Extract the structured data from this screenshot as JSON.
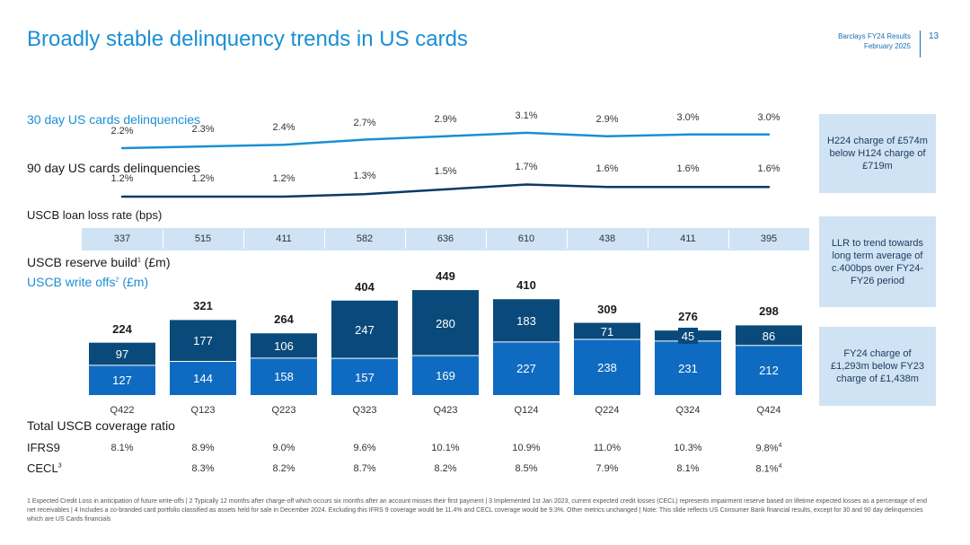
{
  "title": "Broadly stable delinquency trends in US cards",
  "header": {
    "line1": "Barclays FY24 Results",
    "line2": "February 2025",
    "page": "13"
  },
  "sections": {
    "dq30": "30 day US cards delinquencies",
    "dq90": "90 day US cards delinquencies",
    "llr": "USCB loan loss rate (bps)",
    "reserve": "USCB reserve build",
    "reserve_sup": "1",
    "reserve_unit": " (£m)",
    "writeoff": "USCB write offs",
    "writeoff_sup": "2",
    "writeoff_unit": " (£m)",
    "coverage": "Total USCB coverage ratio",
    "ifrs9": "IFRS9",
    "cecl": "CECL",
    "cecl_sup": "3"
  },
  "chart_data": {
    "type": "bar",
    "categories": [
      "Q422",
      "Q123",
      "Q223",
      "Q323",
      "Q423",
      "Q124",
      "Q224",
      "Q324",
      "Q424"
    ],
    "series": [
      {
        "name": "USCB write offs (£m)",
        "values": [
          127,
          144,
          158,
          157,
          169,
          227,
          238,
          231,
          212
        ],
        "color": "#0f6bc1"
      },
      {
        "name": "USCB reserve build (£m)",
        "values": [
          97,
          177,
          106,
          247,
          280,
          183,
          71,
          45,
          86
        ],
        "color": "#0a4a7a"
      }
    ],
    "totals": [
      224,
      321,
      264,
      404,
      449,
      410,
      309,
      276,
      298
    ],
    "lines": {
      "dq30": {
        "label": "30 day US cards delinquencies",
        "values": [
          "2.2%",
          "2.3%",
          "2.4%",
          "2.7%",
          "2.9%",
          "3.1%",
          "2.9%",
          "3.0%",
          "3.0%"
        ],
        "numeric": [
          2.2,
          2.3,
          2.4,
          2.7,
          2.9,
          3.1,
          2.9,
          3.0,
          3.0
        ],
        "color": "#1b8fd2"
      },
      "dq90": {
        "label": "90 day US cards delinquencies",
        "values": [
          "1.2%",
          "1.2%",
          "1.2%",
          "1.3%",
          "1.5%",
          "1.7%",
          "1.6%",
          "1.6%",
          "1.6%"
        ],
        "numeric": [
          1.2,
          1.2,
          1.2,
          1.3,
          1.5,
          1.7,
          1.6,
          1.6,
          1.6
        ],
        "color": "#0a3a66"
      }
    },
    "llr_bps": [
      "337",
      "515",
      "411",
      "582",
      "636",
      "610",
      "438",
      "411",
      "395"
    ],
    "ifrs9": [
      "8.1%",
      "8.9%",
      "9.0%",
      "9.6%",
      "10.1%",
      "10.9%",
      "11.0%",
      "10.3%",
      "9.8%"
    ],
    "ifrs9_last_sup": "4",
    "cecl": [
      "",
      "8.3%",
      "8.2%",
      "8.7%",
      "8.2%",
      "8.5%",
      "7.9%",
      "8.1%",
      "8.1%"
    ],
    "cecl_last_sup": "4",
    "title": "Broadly stable delinquency trends in US cards"
  },
  "side_boxes": {
    "box1": "H224 charge of £574m below H124 charge of £719m",
    "box2": "LLR to trend towards long term average of c.400bps over FY24-FY26 period",
    "box3": "FY24 charge of £1,293m below FY23 charge of £1,438m"
  },
  "footnote": "1 Expected Credit Loss in anticipation of future write-offs | 2 Typically 12 months after charge-off which occurs six months after an account misses their first payment | 3 Implemented 1st Jan 2023, current expected credit losses (CECL) represents impairment reserve based on lifetime expected losses as a percentage of end net receivables | 4 Includes a co-branded card portfolio classified as assets held for sale in December 2024. Excluding this IFRS 9 coverage would be 11.4% and CECL coverage would be 9.3%. Other metrics unchanged | Note: This slide reflects US Consumer Bank financial results, except for 30 and 90 day delinquencies which are US Cards financials"
}
